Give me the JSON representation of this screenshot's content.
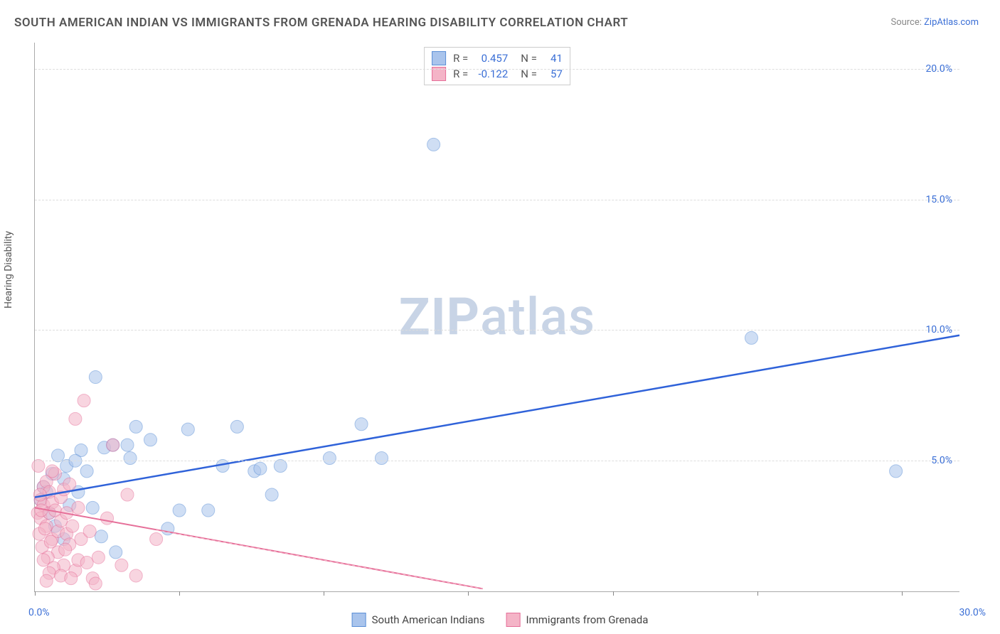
{
  "title": "SOUTH AMERICAN INDIAN VS IMMIGRANTS FROM GRENADA HEARING DISABILITY CORRELATION CHART",
  "source_label": "Source: ",
  "source_link": "ZipAtlas.com",
  "y_axis_label": "Hearing Disability",
  "watermark_a": "ZIP",
  "watermark_b": "atlas",
  "chart": {
    "type": "scatter",
    "background_color": "#ffffff",
    "grid_color": "#dddddd",
    "axis_color": "#aaaaaa",
    "xlim": [
      0,
      32
    ],
    "ylim": [
      0,
      21
    ],
    "x_ticks": [
      0,
      5,
      10,
      15,
      20,
      25,
      30
    ],
    "x_tick_labels": {
      "0": "0.0%",
      "30": "30.0%"
    },
    "y_gridlines": [
      5,
      10,
      15,
      20
    ],
    "y_tick_labels": {
      "5": "5.0%",
      "10": "10.0%",
      "15": "15.0%",
      "20": "20.0%"
    },
    "marker_radius": 9,
    "marker_opacity": 0.55,
    "series": [
      {
        "name": "South American Indians",
        "color_fill": "#a9c4ec",
        "color_stroke": "#5b8fd6",
        "r_value": "0.457",
        "n_value": "41",
        "trend": {
          "x1": 0,
          "y1": 3.6,
          "x2": 32,
          "y2": 9.8,
          "color": "#2f62d9",
          "width": 2.5,
          "dash": ""
        },
        "points": [
          [
            0.2,
            3.5
          ],
          [
            0.3,
            4.0
          ],
          [
            0.5,
            3.0
          ],
          [
            0.6,
            4.5
          ],
          [
            0.8,
            5.2
          ],
          [
            1.0,
            4.3
          ],
          [
            1.2,
            3.3
          ],
          [
            1.6,
            5.4
          ],
          [
            1.8,
            4.6
          ],
          [
            2.1,
            8.2
          ],
          [
            2.3,
            2.1
          ],
          [
            2.4,
            5.5
          ],
          [
            2.7,
            5.6
          ],
          [
            3.2,
            5.6
          ],
          [
            3.3,
            5.1
          ],
          [
            3.5,
            6.3
          ],
          [
            4.6,
            2.4
          ],
          [
            5.0,
            3.1
          ],
          [
            5.3,
            6.2
          ],
          [
            6.0,
            3.1
          ],
          [
            6.5,
            4.8
          ],
          [
            7.0,
            6.3
          ],
          [
            7.6,
            4.6
          ],
          [
            7.8,
            4.7
          ],
          [
            8.2,
            3.7
          ],
          [
            8.5,
            4.8
          ],
          [
            10.2,
            5.1
          ],
          [
            11.3,
            6.4
          ],
          [
            12.0,
            5.1
          ],
          [
            13.8,
            17.1
          ],
          [
            24.8,
            9.7
          ],
          [
            29.8,
            4.6
          ],
          [
            1.0,
            2.0
          ],
          [
            0.7,
            2.5
          ],
          [
            1.5,
            3.8
          ],
          [
            2.0,
            3.2
          ],
          [
            0.4,
            3.8
          ],
          [
            1.1,
            4.8
          ],
          [
            4.0,
            5.8
          ],
          [
            2.8,
            1.5
          ],
          [
            1.4,
            5.0
          ]
        ]
      },
      {
        "name": "Immigrants from Grenada",
        "color_fill": "#f4b4c7",
        "color_stroke": "#e66f99",
        "r_value": "-0.122",
        "n_value": "57",
        "trend": {
          "x1": 0,
          "y1": 3.2,
          "x2": 15.5,
          "y2": 0.1,
          "color": "#e66f99",
          "width": 2,
          "dash": ""
        },
        "trend_dashed": {
          "x1": 4.2,
          "y1": 2.35,
          "x2": 15.5,
          "y2": 0.1,
          "color": "#f4b4c7",
          "width": 1,
          "dash": "4,4"
        },
        "points": [
          [
            0.1,
            3.0
          ],
          [
            0.2,
            3.5
          ],
          [
            0.2,
            2.8
          ],
          [
            0.3,
            3.3
          ],
          [
            0.3,
            4.0
          ],
          [
            0.4,
            2.5
          ],
          [
            0.4,
            4.2
          ],
          [
            0.5,
            3.0
          ],
          [
            0.5,
            3.8
          ],
          [
            0.6,
            2.0
          ],
          [
            0.6,
            3.4
          ],
          [
            0.7,
            3.1
          ],
          [
            0.7,
            4.5
          ],
          [
            0.8,
            2.3
          ],
          [
            0.8,
            1.5
          ],
          [
            0.9,
            2.7
          ],
          [
            0.9,
            3.6
          ],
          [
            1.0,
            1.0
          ],
          [
            1.0,
            3.9
          ],
          [
            1.1,
            2.2
          ],
          [
            1.1,
            3.0
          ],
          [
            1.2,
            1.8
          ],
          [
            1.2,
            4.1
          ],
          [
            1.3,
            2.5
          ],
          [
            1.4,
            0.8
          ],
          [
            1.4,
            6.6
          ],
          [
            1.5,
            1.2
          ],
          [
            1.5,
            3.2
          ],
          [
            1.6,
            2.0
          ],
          [
            1.7,
            7.3
          ],
          [
            1.8,
            1.1
          ],
          [
            1.9,
            2.3
          ],
          [
            2.0,
            0.5
          ],
          [
            2.2,
            1.3
          ],
          [
            2.5,
            2.8
          ],
          [
            2.7,
            5.6
          ],
          [
            3.0,
            1.0
          ],
          [
            3.2,
            3.7
          ],
          [
            3.5,
            0.6
          ],
          [
            4.2,
            2.0
          ],
          [
            0.15,
            2.2
          ],
          [
            0.25,
            1.7
          ],
          [
            0.35,
            2.4
          ],
          [
            0.45,
            1.3
          ],
          [
            0.55,
            1.9
          ],
          [
            0.65,
            0.9
          ],
          [
            0.12,
            4.8
          ],
          [
            0.3,
            1.2
          ],
          [
            0.18,
            3.7
          ],
          [
            0.5,
            0.7
          ],
          [
            0.6,
            4.6
          ],
          [
            0.22,
            3.1
          ],
          [
            0.9,
            0.6
          ],
          [
            1.05,
            1.6
          ],
          [
            1.25,
            0.5
          ],
          [
            0.4,
            0.4
          ],
          [
            2.1,
            0.3
          ]
        ]
      }
    ]
  },
  "legend_stats_labels": {
    "r": "R  =",
    "n": "N  ="
  },
  "bottom_legend": [
    "South American Indians",
    "Immigrants from Grenada"
  ]
}
